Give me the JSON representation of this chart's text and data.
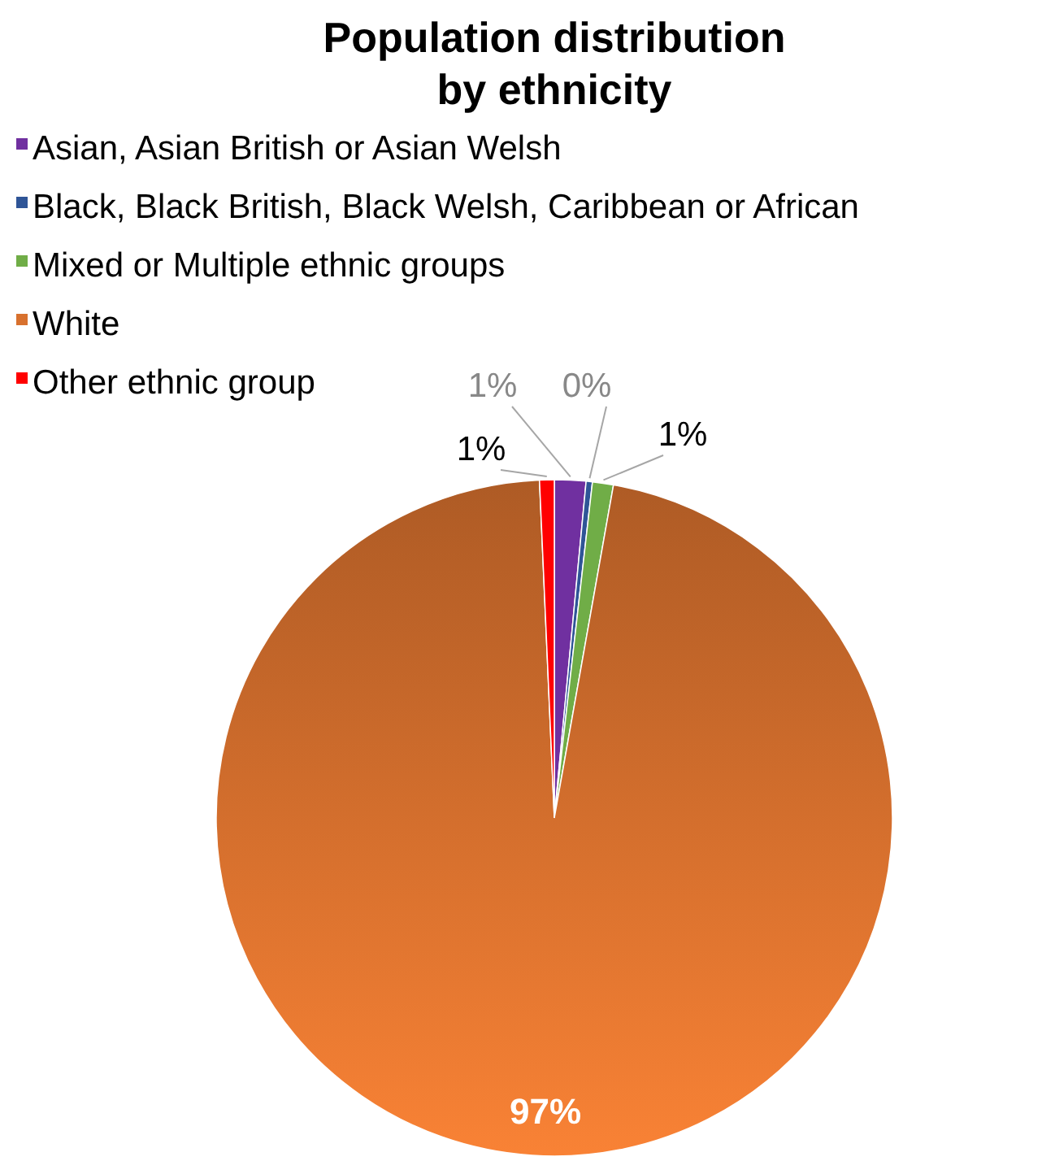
{
  "chart_data": {
    "type": "pie",
    "title": "Population distribution by ethnicity",
    "categories": [
      "Asian, Asian British or Asian Welsh",
      "Black, Black British, Black Welsh, Caribbean or African",
      "Mixed or Multiple ethnic groups",
      "White",
      "Other ethnic group"
    ],
    "values": [
      1.5,
      0.3,
      1.0,
      96.5,
      0.7
    ],
    "value_labels": [
      "1%",
      "0%",
      "1%",
      "97%",
      "1%"
    ],
    "colors": [
      "#7030a0",
      "#2f5597",
      "#70ad47",
      "#d8712e",
      "#ff0000"
    ],
    "legend": "top left"
  }
}
